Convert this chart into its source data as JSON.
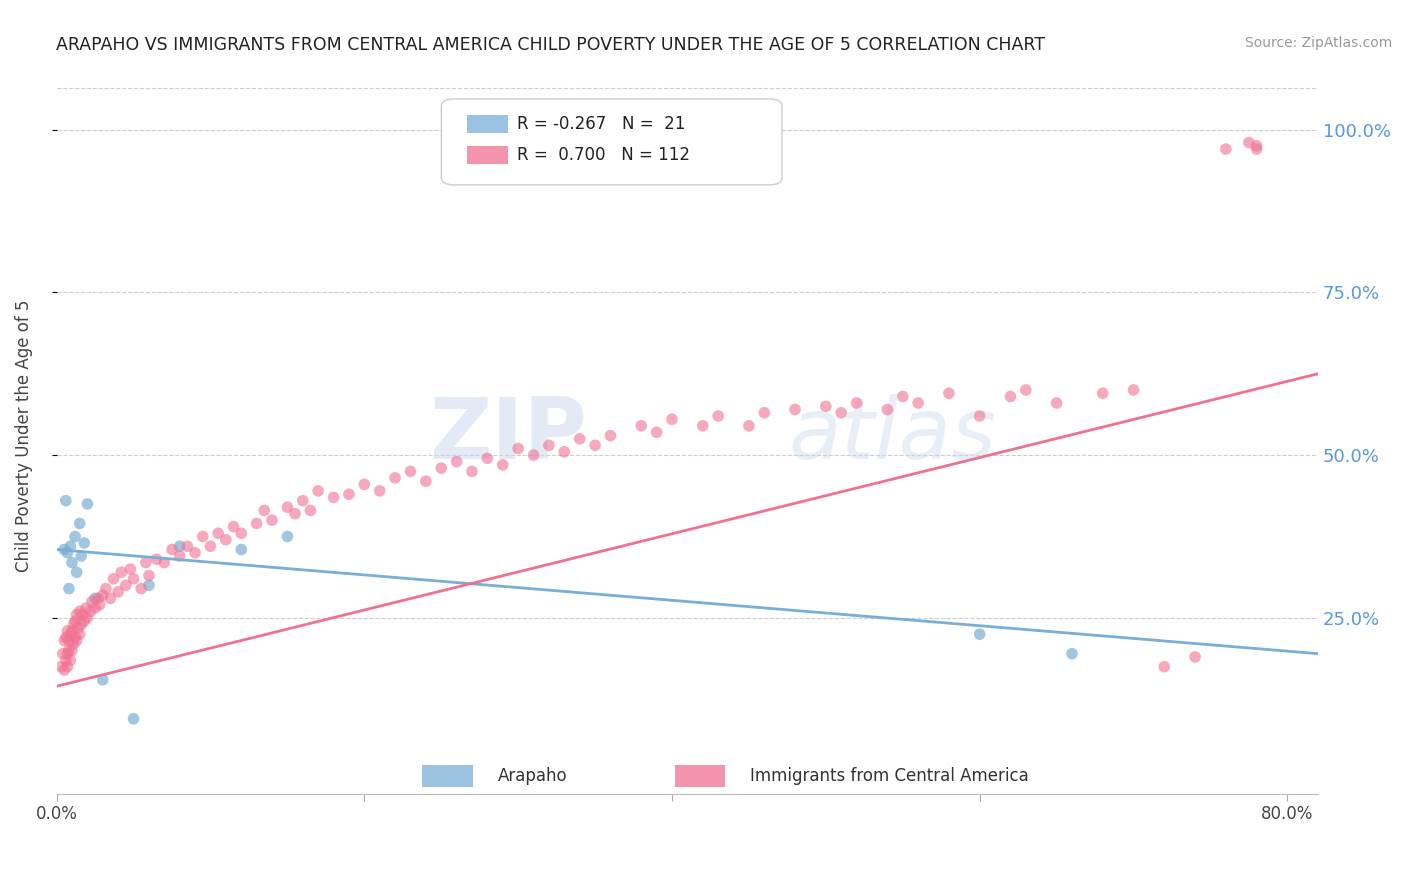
{
  "title": "ARAPAHO VS IMMIGRANTS FROM CENTRAL AMERICA CHILD POVERTY UNDER THE AGE OF 5 CORRELATION CHART",
  "source": "Source: ZipAtlas.com",
  "ylabel": "Child Poverty Under the Age of 5",
  "ytick_labels": [
    "100.0%",
    "75.0%",
    "50.0%",
    "25.0%"
  ],
  "ytick_values": [
    1.0,
    0.75,
    0.5,
    0.25
  ],
  "xlim": [
    0.0,
    0.82
  ],
  "ylim": [
    -0.02,
    1.08
  ],
  "legend_label1": "Arapaho",
  "legend_label2": "Immigrants from Central America",
  "R1": -0.267,
  "N1": 21,
  "R2": 0.7,
  "N2": 112,
  "color_blue": "#7aaed6",
  "color_pink": "#f07090",
  "watermark_zip": "ZIP",
  "watermark_atlas": "atlas",
  "bg_color": "#ffffff",
  "grid_color": "#cccccc",
  "blue_line_start_y": 0.355,
  "blue_line_end_y": 0.195,
  "pink_line_start_y": 0.145,
  "pink_line_end_y": 0.625,
  "arapaho_x": [
    0.005,
    0.006,
    0.007,
    0.008,
    0.009,
    0.01,
    0.012,
    0.013,
    0.015,
    0.016,
    0.018,
    0.02,
    0.025,
    0.03,
    0.05,
    0.06,
    0.08,
    0.12,
    0.15,
    0.6,
    0.66
  ],
  "arapaho_y": [
    0.355,
    0.43,
    0.35,
    0.295,
    0.36,
    0.335,
    0.375,
    0.32,
    0.395,
    0.345,
    0.365,
    0.425,
    0.28,
    0.155,
    0.095,
    0.3,
    0.36,
    0.355,
    0.375,
    0.225,
    0.195
  ],
  "immigrants_x": [
    0.003,
    0.004,
    0.005,
    0.005,
    0.006,
    0.006,
    0.007,
    0.007,
    0.007,
    0.008,
    0.008,
    0.009,
    0.009,
    0.01,
    0.01,
    0.011,
    0.011,
    0.012,
    0.012,
    0.013,
    0.013,
    0.014,
    0.015,
    0.015,
    0.016,
    0.017,
    0.018,
    0.019,
    0.02,
    0.022,
    0.023,
    0.025,
    0.027,
    0.028,
    0.03,
    0.032,
    0.035,
    0.037,
    0.04,
    0.042,
    0.045,
    0.048,
    0.05,
    0.055,
    0.058,
    0.06,
    0.065,
    0.07,
    0.075,
    0.08,
    0.085,
    0.09,
    0.095,
    0.1,
    0.105,
    0.11,
    0.115,
    0.12,
    0.13,
    0.135,
    0.14,
    0.15,
    0.155,
    0.16,
    0.165,
    0.17,
    0.18,
    0.19,
    0.2,
    0.21,
    0.22,
    0.23,
    0.24,
    0.25,
    0.26,
    0.27,
    0.28,
    0.29,
    0.3,
    0.31,
    0.32,
    0.33,
    0.34,
    0.35,
    0.36,
    0.38,
    0.39,
    0.4,
    0.42,
    0.43,
    0.45,
    0.46,
    0.48,
    0.5,
    0.51,
    0.52,
    0.54,
    0.55,
    0.56,
    0.58,
    0.6,
    0.62,
    0.63,
    0.65,
    0.68,
    0.7,
    0.72,
    0.74,
    0.76,
    0.775,
    0.78,
    0.78
  ],
  "immigrants_y": [
    0.175,
    0.195,
    0.17,
    0.215,
    0.185,
    0.22,
    0.175,
    0.195,
    0.23,
    0.2,
    0.215,
    0.185,
    0.225,
    0.2,
    0.23,
    0.21,
    0.24,
    0.22,
    0.245,
    0.215,
    0.255,
    0.235,
    0.225,
    0.26,
    0.24,
    0.255,
    0.245,
    0.265,
    0.25,
    0.26,
    0.275,
    0.265,
    0.28,
    0.27,
    0.285,
    0.295,
    0.28,
    0.31,
    0.29,
    0.32,
    0.3,
    0.325,
    0.31,
    0.295,
    0.335,
    0.315,
    0.34,
    0.335,
    0.355,
    0.345,
    0.36,
    0.35,
    0.375,
    0.36,
    0.38,
    0.37,
    0.39,
    0.38,
    0.395,
    0.415,
    0.4,
    0.42,
    0.41,
    0.43,
    0.415,
    0.445,
    0.435,
    0.44,
    0.455,
    0.445,
    0.465,
    0.475,
    0.46,
    0.48,
    0.49,
    0.475,
    0.495,
    0.485,
    0.51,
    0.5,
    0.515,
    0.505,
    0.525,
    0.515,
    0.53,
    0.545,
    0.535,
    0.555,
    0.545,
    0.56,
    0.545,
    0.565,
    0.57,
    0.575,
    0.565,
    0.58,
    0.57,
    0.59,
    0.58,
    0.595,
    0.56,
    0.59,
    0.6,
    0.58,
    0.595,
    0.6,
    0.175,
    0.19,
    0.97,
    0.98,
    0.97,
    0.975
  ]
}
